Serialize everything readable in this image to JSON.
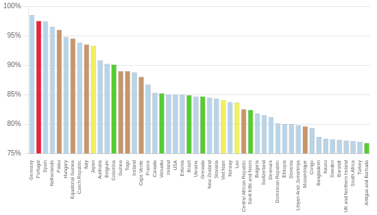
{
  "chart_data": {
    "type": "bar",
    "categories": [
      "Germany",
      "Portugal",
      "Spain",
      "Netherlands",
      "Palau",
      "Hungary",
      "Equatorial Guinea",
      "Czech Republic",
      "Italy",
      "Japan",
      "Australia",
      "Belgium",
      "Colombia",
      "Guinea",
      "Togo",
      "Iceland",
      "Cape Verde",
      "France",
      "Canada",
      "Vanuatu",
      "Ireland",
      "USA",
      "Estonia",
      "Brazil",
      "Ukraine",
      "Grenada",
      "New Zealand",
      "Slovakia",
      "Viet Nam",
      "Norway",
      "Lao",
      "Central African Republic",
      "Saint Kitts and Nevis",
      "Bulgaria",
      "Switzerland",
      "Denmark",
      "Dominican Republic",
      "Ethiopia",
      "Slovenia",
      "Libyan Arab Jamahiriya",
      "Mozambique",
      "Congo",
      "Bangladesh",
      "Nauru",
      "Sweden",
      "Burundi",
      "UK and Northern Ireland",
      "South Africa",
      "Turkey",
      "Antigua and Barbuda"
    ],
    "values": [
      98.5,
      97.5,
      97.4,
      96.5,
      96.0,
      94.8,
      94.5,
      93.8,
      93.5,
      93.3,
      90.8,
      90.2,
      90.1,
      89.0,
      89.0,
      88.8,
      88.0,
      86.7,
      85.3,
      85.2,
      85.0,
      85.0,
      85.0,
      84.9,
      84.7,
      84.7,
      84.5,
      84.3,
      84.1,
      83.7,
      83.6,
      82.5,
      82.4,
      81.8,
      81.5,
      81.2,
      80.1,
      80.0,
      80.0,
      79.8,
      79.6,
      79.3,
      77.8,
      77.5,
      77.4,
      77.3,
      77.2,
      77.1,
      77.0,
      76.8
    ],
    "colors": [
      "#b8d4e8",
      "#e8233a",
      "#b8d4e8",
      "#b8d4e8",
      "#c8956a",
      "#b8d4e8",
      "#c8956a",
      "#b8d4e8",
      "#c8956a",
      "#f0f060",
      "#b8d4e8",
      "#b8d4e8",
      "#55cc33",
      "#c8956a",
      "#c8956a",
      "#b8d4e8",
      "#c8956a",
      "#b8d4e8",
      "#b8d4e8",
      "#55cc33",
      "#b8d4e8",
      "#b8d4e8",
      "#b8d4e8",
      "#55cc33",
      "#b8d4e8",
      "#55cc33",
      "#b8d4e8",
      "#b8d4e8",
      "#f0f060",
      "#b8d4e8",
      "#f0f060",
      "#c8956a",
      "#55cc33",
      "#b8d4e8",
      "#b8d4e8",
      "#b8d4e8",
      "#b8d4e8",
      "#b8d4e8",
      "#b8d4e8",
      "#b8d4e8",
      "#c8956a",
      "#b8d4e8",
      "#b8d4e8",
      "#b8d4e8",
      "#b8d4e8",
      "#b8d4e8",
      "#b8d4e8",
      "#b8d4e8",
      "#b8d4e8",
      "#55cc33"
    ],
    "ylim": [
      75,
      100
    ],
    "yticks": [
      {
        "value": 75,
        "label": "75%"
      },
      {
        "value": 80,
        "label": "80%"
      },
      {
        "value": 85,
        "label": "85%"
      },
      {
        "value": 90,
        "label": "90%"
      },
      {
        "value": 95,
        "label": "95%"
      },
      {
        "value": 100,
        "label": "100%"
      }
    ],
    "grid": true
  }
}
